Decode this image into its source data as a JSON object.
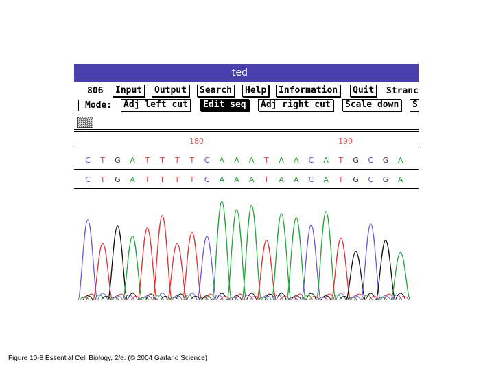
{
  "window": {
    "title": "ted"
  },
  "toolbar": {
    "count": "806",
    "buttons": [
      {
        "label": "Input"
      },
      {
        "label": "Output"
      },
      {
        "label": "Search"
      },
      {
        "label": "Help"
      },
      {
        "label": "Information"
      },
      {
        "label": "Quit"
      }
    ],
    "strand_label": "Stranc"
  },
  "mode": {
    "label": "Mode:",
    "buttons": [
      {
        "label": "Adj left cut",
        "active": false
      },
      {
        "label": "Edit seq",
        "active": true
      },
      {
        "label": "Adj right cut",
        "active": false
      },
      {
        "label": "Scale down",
        "active": false
      },
      {
        "label": "S",
        "active": false
      }
    ]
  },
  "ruler": {
    "positions": [
      "180",
      "190"
    ]
  },
  "sequence": {
    "edited": [
      "C",
      "T",
      "G",
      "A",
      "T",
      "T",
      "T",
      "T",
      "C",
      "A",
      "A",
      "A",
      "T",
      "A",
      "A",
      "C",
      "A",
      "T",
      "G",
      "C",
      "G",
      "A"
    ],
    "original": [
      "C",
      "T",
      "G",
      "A",
      "T",
      "T",
      "T",
      "T",
      "C",
      "A",
      "A",
      "A",
      "T",
      "A",
      "A",
      "C",
      "A",
      "T",
      "G",
      "C",
      "G",
      "A"
    ]
  },
  "trace_colors": {
    "A": "#22a33a",
    "C": "#6a5ad6",
    "G": "#111111",
    "T": "#e03030"
  },
  "caption": "Figure 10-8  Essential Cell Biology, 2/e. (© 2004 Garland Science)"
}
